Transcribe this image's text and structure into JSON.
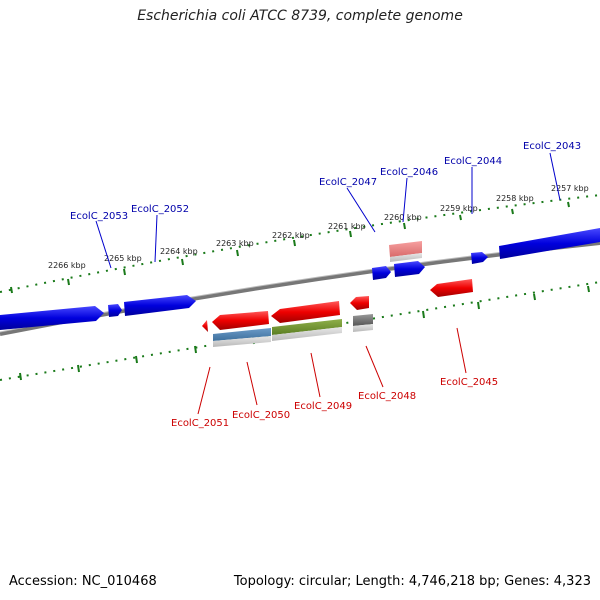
{
  "header": {
    "title": "Escherichia coli ATCC 8739, complete genome"
  },
  "footer": {
    "accession": "Accession: NC_010468",
    "topology": "Topology: circular; Length: 4,746,218 bp; Genes: 4,323"
  },
  "colors": {
    "forward_gene": "#0000dd",
    "reverse_gene": "#ee0000",
    "backbone": "#777777",
    "tick": "#1a7a1a",
    "forward_label": "#0000aa",
    "reverse_label": "#cc0000"
  },
  "axis": {
    "top_ticks": [
      "2257 kbp",
      "2258 kbp",
      "2259 kbp",
      "2260 kbp",
      "2261 kbp",
      "2262 kbp",
      "2263 kbp",
      "2264 kbp",
      "2265 kbp",
      "2266 kbp"
    ]
  },
  "forward_labels": [
    "EcolC_2043",
    "EcolC_2044",
    "EcolC_2046",
    "EcolC_2047",
    "EcolC_2052",
    "EcolC_2053"
  ],
  "reverse_labels": [
    "EcolC_2045",
    "EcolC_2048",
    "EcolC_2049",
    "EcolC_2050",
    "EcolC_2051"
  ]
}
